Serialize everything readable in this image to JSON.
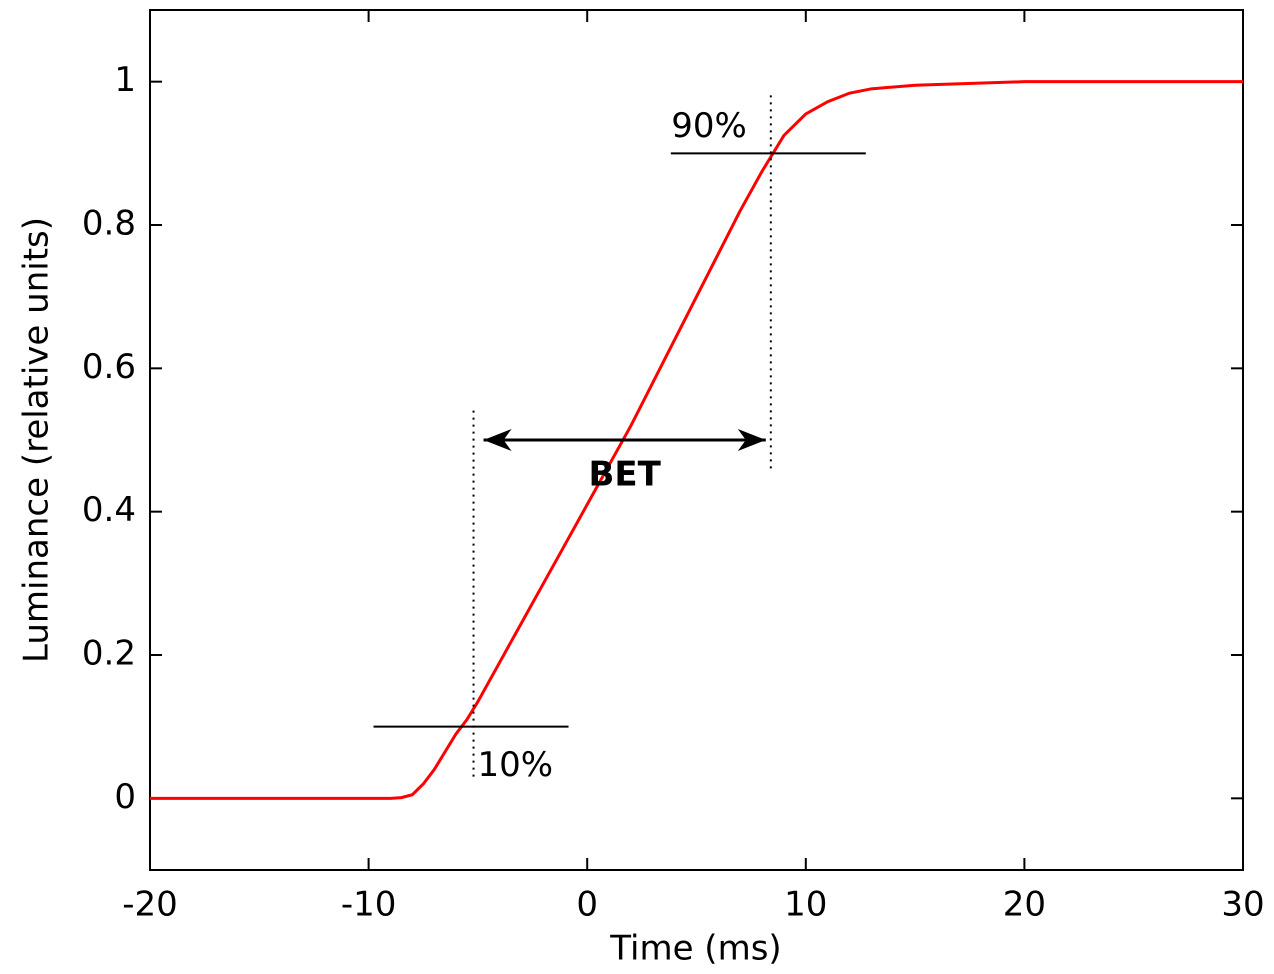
{
  "chart_data": {
    "type": "line",
    "xlabel": "Time (ms)",
    "ylabel": "Luminance (relative units)",
    "x": [
      -20,
      -15,
      -10,
      -9,
      -8.5,
      -8,
      -7.5,
      -7,
      -6.5,
      -6,
      -5.5,
      -5,
      -4,
      -3,
      -2,
      -1,
      0,
      1,
      2,
      3,
      4,
      5,
      6,
      7,
      8,
      9,
      10,
      11,
      12,
      13,
      15,
      20,
      25,
      30
    ],
    "series": [
      {
        "name": "Luminance",
        "color": "#ff0000",
        "values": [
          0,
          0,
          0,
          0,
          0.001,
          0.005,
          0.02,
          0.04,
          0.065,
          0.09,
          0.11,
          0.135,
          0.19,
          0.245,
          0.3,
          0.355,
          0.41,
          0.465,
          0.52,
          0.58,
          0.64,
          0.7,
          0.76,
          0.82,
          0.875,
          0.925,
          0.955,
          0.972,
          0.984,
          0.99,
          0.995,
          1,
          1,
          1
        ]
      }
    ],
    "xlim": [
      -20,
      30
    ],
    "xticks": [
      -20,
      -10,
      0,
      10,
      20,
      30
    ],
    "ylim": [
      -0.1,
      1.1
    ],
    "yticks": [
      0,
      0.2,
      0.4,
      0.6,
      0.8,
      1
    ],
    "grid": false,
    "annotations": [
      {
        "label": "10%",
        "x": -5.2,
        "y": 0.1
      },
      {
        "label": "90%",
        "x": 8.4,
        "y": 0.9
      }
    ],
    "bet": {
      "label": "BET",
      "x": [
        -5.2,
        8.4
      ],
      "y": 0.5
    }
  }
}
